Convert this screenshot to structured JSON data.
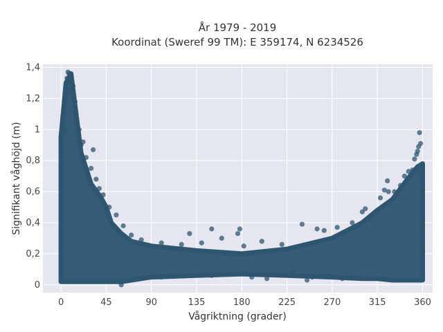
{
  "chart_data": {
    "type": "scatter",
    "title_lines": [
      "År 1979 - 2019",
      "Koordinat (Sweref 99 TM): E 359174, N 6234526"
    ],
    "xlabel": "Vågriktning (grader)",
    "ylabel": "Signifikant våghöjd (m)",
    "xlim": [
      -18,
      370
    ],
    "ylim": [
      -0.05,
      1.42
    ],
    "xticks": [
      0,
      45,
      90,
      135,
      180,
      225,
      270,
      315,
      360
    ],
    "xtick_labels": [
      "0",
      "45",
      "90",
      "135",
      "180",
      "225",
      "270",
      "315",
      "360"
    ],
    "yticks": [
      0,
      0.2,
      0.4,
      0.6,
      0.8,
      1,
      1.2,
      1.4
    ],
    "ytick_labels": [
      "0",
      "0,2",
      "0,4",
      "0,6",
      "0,8",
      "1",
      "1,2",
      "1,4"
    ],
    "grid": true,
    "marker_color": "#2f5670",
    "plot_background": "#e5e6ef",
    "grid_color": "#ffffff",
    "envelope": {
      "direction": [
        0,
        5,
        10,
        15,
        20,
        30,
        40,
        45,
        50,
        60,
        70,
        90,
        135,
        180,
        225,
        270,
        300,
        315,
        330,
        345,
        355,
        360
      ],
      "lower": [
        0.02,
        0.02,
        0.02,
        0.02,
        0.02,
        0.02,
        0.02,
        0.02,
        0.02,
        0.02,
        0.03,
        0.05,
        0.06,
        0.07,
        0.06,
        0.05,
        0.04,
        0.04,
        0.03,
        0.03,
        0.03,
        0.03
      ],
      "upper": [
        0.95,
        1.3,
        1.36,
        1.1,
        0.85,
        0.65,
        0.56,
        0.5,
        0.4,
        0.33,
        0.28,
        0.25,
        0.22,
        0.2,
        0.23,
        0.3,
        0.4,
        0.48,
        0.55,
        0.68,
        0.76,
        0.78
      ]
    },
    "points": [
      [
        7,
        1.37
      ],
      [
        8,
        1.36
      ],
      [
        9,
        1.34
      ],
      [
        6,
        1.33
      ],
      [
        10,
        1.3
      ],
      [
        12,
        1.28
      ],
      [
        8,
        1.25
      ],
      [
        14,
        1.18
      ],
      [
        16,
        1.05
      ],
      [
        18,
        1.0
      ],
      [
        22,
        0.92
      ],
      [
        25,
        0.82
      ],
      [
        32,
        0.87
      ],
      [
        30,
        0.75
      ],
      [
        35,
        0.68
      ],
      [
        38,
        0.62
      ],
      [
        42,
        0.58
      ],
      [
        48,
        0.5
      ],
      [
        55,
        0.45
      ],
      [
        62,
        0.38
      ],
      [
        70,
        0.32
      ],
      [
        80,
        0.29
      ],
      [
        100,
        0.27
      ],
      [
        120,
        0.26
      ],
      [
        128,
        0.33
      ],
      [
        140,
        0.27
      ],
      [
        150,
        0.36
      ],
      [
        160,
        0.3
      ],
      [
        176,
        0.33
      ],
      [
        178,
        0.36
      ],
      [
        182,
        0.25
      ],
      [
        200,
        0.28
      ],
      [
        220,
        0.26
      ],
      [
        240,
        0.39
      ],
      [
        255,
        0.36
      ],
      [
        262,
        0.35
      ],
      [
        275,
        0.37
      ],
      [
        290,
        0.4
      ],
      [
        300,
        0.47
      ],
      [
        303,
        0.49
      ],
      [
        318,
        0.56
      ],
      [
        322,
        0.61
      ],
      [
        326,
        0.6
      ],
      [
        325,
        0.67
      ],
      [
        332,
        0.6
      ],
      [
        338,
        0.64
      ],
      [
        342,
        0.7
      ],
      [
        346,
        0.73
      ],
      [
        350,
        0.74
      ],
      [
        352,
        0.81
      ],
      [
        354,
        0.84
      ],
      [
        355,
        0.86
      ],
      [
        356,
        0.89
      ],
      [
        358,
        0.91
      ],
      [
        357,
        0.98
      ],
      [
        3,
        0.98
      ],
      [
        4,
        1.0
      ],
      [
        20,
        0.9
      ],
      [
        15,
        1.1
      ],
      [
        60,
        0.0
      ],
      [
        100,
        0.05
      ],
      [
        150,
        0.06
      ],
      [
        185,
        0.07
      ],
      [
        190,
        0.05
      ],
      [
        250,
        0.05
      ],
      [
        280,
        0.04
      ],
      [
        230,
        0.08
      ],
      [
        245,
        0.03
      ],
      [
        205,
        0.04
      ]
    ]
  }
}
